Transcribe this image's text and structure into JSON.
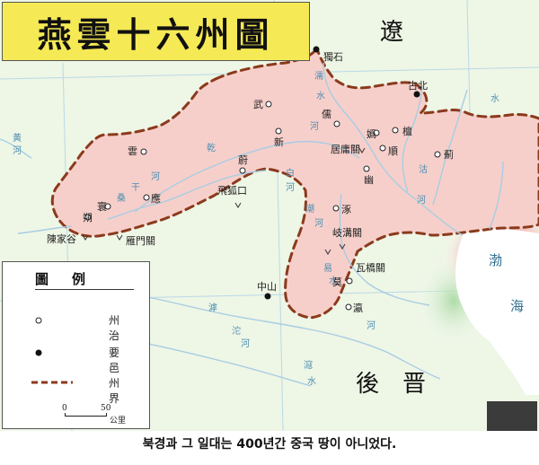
{
  "title": "燕雲十六州圖",
  "regions": {
    "liao": "遼",
    "later_jin": "後　晋",
    "sea_1": "渤",
    "sea_2": "海"
  },
  "prefectures": [
    "雲",
    "應",
    "寰",
    "朔",
    "武",
    "新",
    "嬀",
    "儒",
    "蔚",
    "檀",
    "順",
    "薊",
    "幽",
    "涿",
    "瀛",
    "莫"
  ],
  "places": {
    "dushi": "獨石",
    "gubei": "古北",
    "juyongguan": "居庸關",
    "feihukou": "飛狐口",
    "qigouguan": "岐溝關",
    "wajiaoguan": "瓦橋關",
    "yanmenguan": "雁門關",
    "chenjiagu": "陳家谷",
    "zhongshan": "中山"
  },
  "rivers": [
    "濡",
    "水",
    "河",
    "黃",
    "河",
    "乾",
    "河",
    "桑",
    "干",
    "河",
    "白",
    "河",
    "潮",
    "河",
    "沽",
    "河",
    "滹",
    "沱",
    "河",
    "滱",
    "水",
    "河",
    "易",
    "水"
  ],
  "legend": {
    "title": "圖例",
    "items": [
      {
        "symbol": "open-circle",
        "label": "州治"
      },
      {
        "symbol": "filled-dot",
        "label": "要邑"
      },
      {
        "symbol": "dashed-line",
        "label": "州界"
      }
    ]
  },
  "scale": {
    "zero": "0",
    "fifty": "50",
    "unit": "公里"
  },
  "caption": "북경과 그 일대는 400년간 중국 땅이 아니었다.",
  "colors": {
    "land": "#eef6e6",
    "region_fill": "#f6cfcb",
    "boundary": "#8b3a1c",
    "river": "#a8cde2",
    "sea_red": "#f26a6a",
    "sea_green": "#c7e6c0",
    "title_bg": "#f5ea55"
  }
}
